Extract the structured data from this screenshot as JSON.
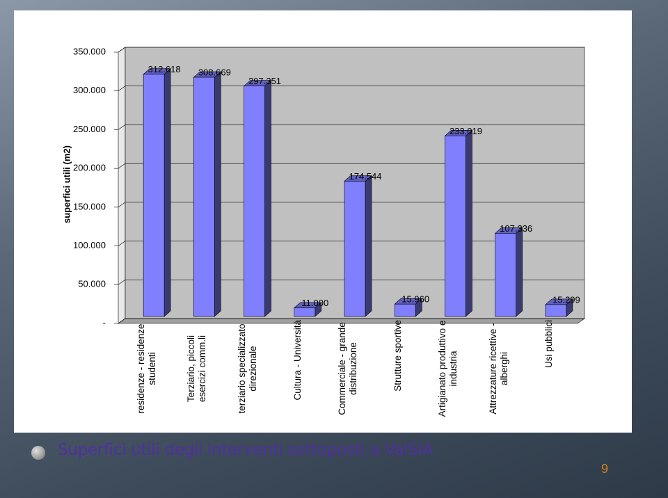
{
  "chart_data": {
    "type": "bar3d",
    "y_label": "superfici utili (m2)",
    "categories": [
      "residenze - residenze studenti",
      "Terziario, piccoli esercizi comm.li",
      "terziario specializzato direzionale",
      "Cultura - Università",
      "Commerciale - grande distribuzione",
      "Strutture sportive",
      "Artigianato produttivo e industria",
      "Attrezzature ricettive - alberghi",
      "Usi pubblici"
    ],
    "values": [
      312618,
      308669,
      297351,
      11000,
      174544,
      15960,
      233019,
      107336,
      15299
    ],
    "value_labels": [
      "312.618",
      "308.669",
      "297.351",
      "11.000",
      "174.544",
      "15.960",
      "233.019",
      "107.336",
      "15.299"
    ],
    "color": "#8080ff",
    "ylim": [
      0,
      350000
    ],
    "yticks": [
      {
        "value": 0,
        "label": "-"
      },
      {
        "value": 50000,
        "label": "50.000"
      },
      {
        "value": 100000,
        "label": "100.000"
      },
      {
        "value": 150000,
        "label": "150.000"
      },
      {
        "value": 200000,
        "label": "200.000"
      },
      {
        "value": 250000,
        "label": "250.000"
      },
      {
        "value": 300000,
        "label": "300.000"
      },
      {
        "value": 350000,
        "label": "350.000"
      }
    ],
    "grid": true
  },
  "caption": "Superfici utili degli interventi sottoposti a ValSIA",
  "page_number": "9"
}
